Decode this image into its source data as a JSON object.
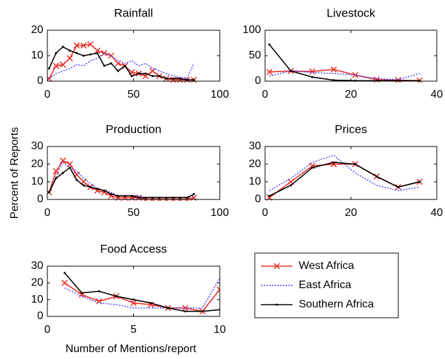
{
  "chart_data": [
    {
      "type": "line",
      "title": "Rainfall",
      "x": [
        1,
        5,
        9,
        13,
        17,
        21,
        25,
        29,
        33,
        37,
        41,
        45,
        49,
        53,
        57,
        61,
        65,
        69,
        73,
        77,
        81,
        85
      ],
      "xlim": [
        0,
        100
      ],
      "xticks": [
        0,
        50,
        100
      ],
      "ylim": [
        0,
        20
      ],
      "yticks": [
        0,
        10,
        20
      ],
      "series": [
        {
          "name": "West Africa",
          "color": "#e8302a",
          "marker": "x",
          "linestyle": "solid",
          "values": [
            1,
            6,
            6.5,
            9,
            14,
            14,
            14.5,
            12,
            11,
            10,
            7,
            6,
            3.5,
            3,
            2,
            4,
            2,
            1,
            0.5,
            0.5,
            0.5,
            0.5
          ]
        },
        {
          "name": "East Africa",
          "color": "#3b3bff",
          "marker": "none",
          "linestyle": "dotted",
          "values": [
            1,
            3,
            4,
            5,
            6.5,
            6,
            8,
            9,
            11,
            10,
            8,
            7,
            8,
            6,
            7,
            5,
            4,
            3,
            2,
            1.5,
            1,
            7
          ]
        },
        {
          "name": "Southern Africa",
          "color": "#000000",
          "marker": "dot",
          "linestyle": "solid",
          "values": [
            5,
            11,
            13.5,
            12,
            11,
            10,
            10.5,
            11,
            6,
            7,
            4,
            6,
            2,
            3,
            3,
            2,
            2,
            1,
            1,
            1,
            0.5,
            0.5
          ]
        }
      ]
    },
    {
      "type": "line",
      "title": "Livestock",
      "x": [
        1,
        6,
        11,
        16,
        21,
        26,
        31,
        36
      ],
      "xlim": [
        0,
        40
      ],
      "xticks": [
        0,
        20,
        40
      ],
      "ylim": [
        0,
        100
      ],
      "yticks": [
        0,
        50,
        100
      ],
      "series": [
        {
          "color": "#e8302a",
          "marker": "x",
          "linestyle": "solid",
          "values": [
            18,
            20,
            19,
            23,
            12,
            3,
            2,
            1
          ]
        },
        {
          "color": "#3b3bff",
          "marker": "none",
          "linestyle": "dotted",
          "values": [
            10,
            20,
            17,
            15,
            12,
            5,
            3,
            15
          ]
        },
        {
          "color": "#000000",
          "marker": "dot",
          "linestyle": "solid",
          "values": [
            72,
            20,
            8,
            2,
            1,
            1,
            1,
            1
          ]
        }
      ]
    },
    {
      "type": "line",
      "title": "Production",
      "ylabel": "Percent of Reports",
      "x": [
        1,
        5,
        9,
        13,
        17,
        21,
        25,
        29,
        33,
        37,
        41,
        45,
        49,
        53,
        57,
        61,
        65,
        69,
        73,
        77,
        81,
        85
      ],
      "xlim": [
        0,
        100
      ],
      "xticks": [
        0,
        50,
        100
      ],
      "ylim": [
        0,
        30
      ],
      "yticks": [
        0,
        10,
        20,
        30
      ],
      "series": [
        {
          "color": "#e8302a",
          "marker": "x",
          "linestyle": "solid",
          "values": [
            4,
            16,
            22,
            20,
            14,
            10,
            7,
            5,
            4,
            2,
            1,
            1,
            1,
            1,
            0,
            0,
            0,
            0,
            0,
            0,
            0,
            1
          ]
        },
        {
          "color": "#3b3bff",
          "marker": "none",
          "linestyle": "dotted",
          "values": [
            4,
            13,
            21,
            18,
            16,
            12,
            9,
            6,
            5,
            4,
            2,
            2,
            2,
            2,
            1,
            1,
            1,
            1,
            1,
            1,
            1,
            2
          ]
        },
        {
          "color": "#000000",
          "marker": "dot",
          "linestyle": "solid",
          "values": [
            4,
            12,
            15,
            18,
            11,
            8,
            7,
            6,
            5,
            3,
            2,
            2,
            2,
            1,
            1,
            1,
            1,
            1,
            1,
            1,
            1,
            3
          ]
        }
      ]
    },
    {
      "type": "line",
      "title": "Prices",
      "x": [
        1,
        6,
        11,
        16,
        21,
        26,
        31,
        36
      ],
      "xlim": [
        0,
        40
      ],
      "xticks": [
        0,
        20,
        40
      ],
      "ylim": [
        0,
        30
      ],
      "yticks": [
        0,
        10,
        20,
        30
      ],
      "series": [
        {
          "color": "#e8302a",
          "marker": "x",
          "linestyle": "solid",
          "values": [
            1,
            10,
            19,
            20,
            20,
            13,
            7,
            10
          ]
        },
        {
          "color": "#3b3bff",
          "marker": "none",
          "linestyle": "dotted",
          "values": [
            5,
            12,
            21,
            25,
            15,
            8,
            5,
            7
          ]
        },
        {
          "color": "#000000",
          "marker": "dot",
          "linestyle": "solid",
          "values": [
            2,
            8,
            18,
            21,
            20,
            13,
            7,
            10
          ]
        }
      ]
    },
    {
      "type": "line",
      "title": "Food Access",
      "xlabel": "Number of Mentions/report",
      "x": [
        1,
        2,
        3,
        4,
        5,
        6,
        7,
        8,
        9,
        10
      ],
      "xlim": [
        0,
        10
      ],
      "xticks": [
        0,
        5,
        10
      ],
      "ylim": [
        0,
        30
      ],
      "yticks": [
        0,
        10,
        20,
        30
      ],
      "series": [
        {
          "color": "#e8302a",
          "marker": "x",
          "linestyle": "solid",
          "values": [
            20,
            13,
            9,
            12,
            8,
            7,
            5,
            5,
            3,
            16
          ]
        },
        {
          "color": "#3b3bff",
          "marker": "none",
          "linestyle": "dotted",
          "values": [
            17,
            12,
            8,
            7,
            5,
            5,
            5,
            5,
            5,
            23
          ]
        },
        {
          "color": "#000000",
          "marker": "dot",
          "linestyle": "solid",
          "values": [
            26,
            14,
            15,
            12,
            10,
            8,
            5,
            3,
            3,
            4
          ]
        }
      ]
    }
  ]
}
